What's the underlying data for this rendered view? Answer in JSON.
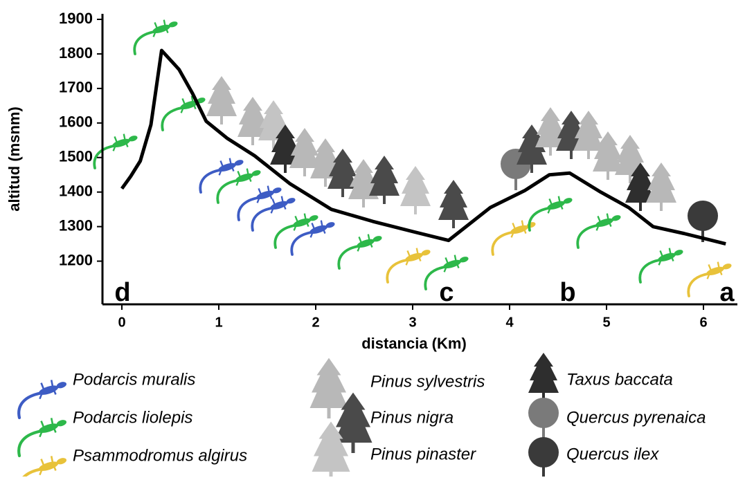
{
  "chart_data": {
    "type": "line",
    "x_label": "distancia (Km)",
    "y_label": "altitud (msnm)",
    "x": [
      0,
      0.09,
      0.19,
      0.3,
      0.41,
      0.59,
      0.73,
      0.87,
      1.09,
      1.37,
      1.73,
      2.16,
      2.59,
      3.01,
      3.37,
      3.8,
      4.16,
      4.41,
      4.62,
      4.94,
      5.23,
      5.48,
      5.8,
      6.23
    ],
    "series": [
      {
        "values": [
          1410,
          1445,
          1490,
          1595,
          1810,
          1755,
          1685,
          1605,
          1555,
          1505,
          1425,
          1350,
          1315,
          1285,
          1260,
          1355,
          1405,
          1450,
          1455,
          1400,
          1355,
          1300,
          1280,
          1250
        ],
        "color": "#000000"
      }
    ],
    "xlim": [
      -0.2,
      6.35
    ],
    "ylim": [
      1075,
      1900
    ],
    "xticks": [
      0,
      1,
      2,
      3,
      4,
      5,
      6
    ],
    "yticks": [
      1200,
      1300,
      1400,
      1500,
      1600,
      1700,
      1800,
      1900
    ],
    "annotations": [
      "d",
      "c",
      "b",
      "a"
    ],
    "legend": {
      "lizards": [
        {
          "name": "Podarcis muralis",
          "color": "#3d5cc4"
        },
        {
          "name": "Podarcis liolepis",
          "color": "#2db84a"
        },
        {
          "name": "Psammodromus algirus",
          "color": "#e8c23a"
        }
      ],
      "trees": [
        {
          "name": "Pinus sylvestris",
          "color": "#b8b8b8"
        },
        {
          "name": "Pinus nigra",
          "color": "#4a4a4a"
        },
        {
          "name": "Pinus pinaster",
          "color": "#c4c4c4"
        },
        {
          "name": "Taxus baccata",
          "color": "#2e2e2e"
        },
        {
          "name": "Quercus pyrenaica",
          "color": "#7a7a7a"
        },
        {
          "name": "Quercus ilex",
          "color": "#3a3a3a"
        }
      ]
    }
  }
}
